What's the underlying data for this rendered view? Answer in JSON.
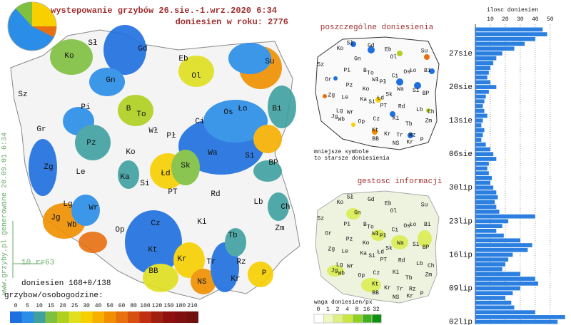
{
  "header": {
    "title": "wystepowanie grzybów 26.sie.-1.wrz.2020  6:34",
    "subtitle": "doniesien w roku: 2776"
  },
  "main_map": {
    "labels": [
      "Ko",
      "Sł",
      "Gd",
      "Eb",
      "Ol",
      "Su",
      "Sz",
      "Gn",
      "Pi",
      "B",
      "To",
      "Bi",
      "Ło",
      "Os",
      "Ci",
      "Wł",
      "Gr",
      "Pł",
      "Pz",
      "Ko",
      "Wa",
      "Si",
      "Zg",
      "Le",
      "Sk",
      "Łd",
      "Ka",
      "BP",
      "Si",
      "PT",
      "Rd",
      "Lb",
      "Lg",
      "Wr",
      "Ch",
      "Jg",
      "Wb",
      "Op",
      "Ki",
      "Zm",
      "Cz",
      "Tb",
      "Kt",
      "Kr",
      "Tr",
      "Rz",
      "BB",
      "NS",
      "Kr",
      "P"
    ],
    "side_note": "www.grzyby.pl generowane 20.09.01  6:34",
    "scale_note": "10 r=63",
    "reports": "doniesien 168+0/138",
    "legend_title": "grzybow/osobogodzine:",
    "legend": {
      "values": [
        0,
        5,
        10,
        15,
        20,
        25,
        30,
        40,
        50,
        60,
        80,
        100,
        120,
        150,
        180,
        210
      ],
      "colors": [
        "#1e6fe0",
        "#2a8de8",
        "#40a0a0",
        "#80c040",
        "#b0d020",
        "#e0e020",
        "#f8d000",
        "#f8b000",
        "#f09000",
        "#e87010",
        "#d85010",
        "#c03010",
        "#a02010",
        "#901010",
        "#801010",
        "#701010"
      ]
    }
  },
  "reports_map": {
    "title": "poszczególne doniesienia",
    "note": [
      "mniejsze symbole",
      "to starsze doniesienia"
    ],
    "labels": [
      "Ko",
      "Sł",
      "Gd",
      "Eb",
      "Ol",
      "Su",
      "Sz",
      "Gn",
      "Pi",
      "B",
      "To",
      "Bi",
      "Ło",
      "Os",
      "Ci",
      "Wł",
      "Gr",
      "Pł",
      "Pz",
      "Ko",
      "Wa",
      "Si",
      "Zg",
      "Le",
      "Sk",
      "Łd",
      "Ka",
      "BP",
      "Si",
      "PT",
      "Rd",
      "Lb",
      "Lg",
      "Wr",
      "Ch",
      "Jg",
      "Wb",
      "Op",
      "Ki",
      "Zm",
      "Cz",
      "Tb",
      "Kt",
      "Kr",
      "Tr",
      "Rz",
      "BB",
      "NS",
      "Kr",
      "P"
    ]
  },
  "density_map": {
    "title": "gestosc informacji",
    "legend_title": "waga doniesien/px",
    "legend": {
      "values": [
        0,
        1,
        2,
        4,
        8,
        16,
        32
      ],
      "colors": [
        "#ffffff",
        "#f0f8c0",
        "#e0f080",
        "#c8e840",
        "#90d020",
        "#40b020",
        "#109010"
      ]
    },
    "labels": [
      "Ko",
      "Sł",
      "Gd",
      "Eb",
      "Ol",
      "Su",
      "Sz",
      "Gn",
      "Pi",
      "B",
      "To",
      "Bi",
      "Ło",
      "Os",
      "Ci",
      "Wł",
      "Gr",
      "Pł",
      "Pz",
      "Ko",
      "Wa",
      "Si",
      "Zg",
      "Le",
      "Sk",
      "Łd",
      "Ka",
      "BP",
      "Si",
      "PT",
      "Rd",
      "Lb",
      "Lg",
      "Wr",
      "Ch",
      "Jg",
      "Wb",
      "Op",
      "Ki",
      "Zm",
      "Cz",
      "Tb",
      "Kt",
      "Kr",
      "Tr",
      "Rz",
      "BB",
      "NS",
      "Kr",
      "P"
    ]
  },
  "chart_data": {
    "type": "bar",
    "title": "ilosc doniesien",
    "categories": [
      null,
      null,
      null,
      null,
      null,
      "27sie",
      null,
      null,
      null,
      null,
      null,
      null,
      "20sie",
      null,
      null,
      null,
      null,
      null,
      null,
      "13sie",
      null,
      null,
      null,
      null,
      null,
      null,
      "06sie",
      null,
      null,
      null,
      null,
      null,
      null,
      "30lip",
      null,
      null,
      null,
      null,
      null,
      null,
      "23lip",
      null,
      null,
      null,
      null,
      null,
      null,
      "16lip",
      null,
      null,
      null,
      null,
      null,
      null,
      "09lip",
      null,
      null,
      null,
      null,
      null,
      null,
      "02lip"
    ],
    "values": [
      45,
      48,
      40,
      33,
      26,
      18,
      14,
      12,
      10,
      9,
      8,
      10,
      14,
      9,
      7,
      6,
      5,
      6,
      8,
      5,
      4,
      6,
      5,
      4,
      7,
      10,
      12,
      14,
      9,
      8,
      9,
      11,
      10,
      12,
      14,
      15,
      13,
      14,
      16,
      40,
      22,
      18,
      14,
      19,
      30,
      38,
      35,
      25,
      22,
      20,
      18,
      30,
      40,
      42,
      30,
      25,
      20,
      24,
      26,
      40,
      60,
      55
    ],
    "color": "#2a7fe0",
    "xlim": [
      0,
      63
    ],
    "xticks": [
      10,
      20,
      30,
      40,
      50
    ],
    "grid": true
  }
}
